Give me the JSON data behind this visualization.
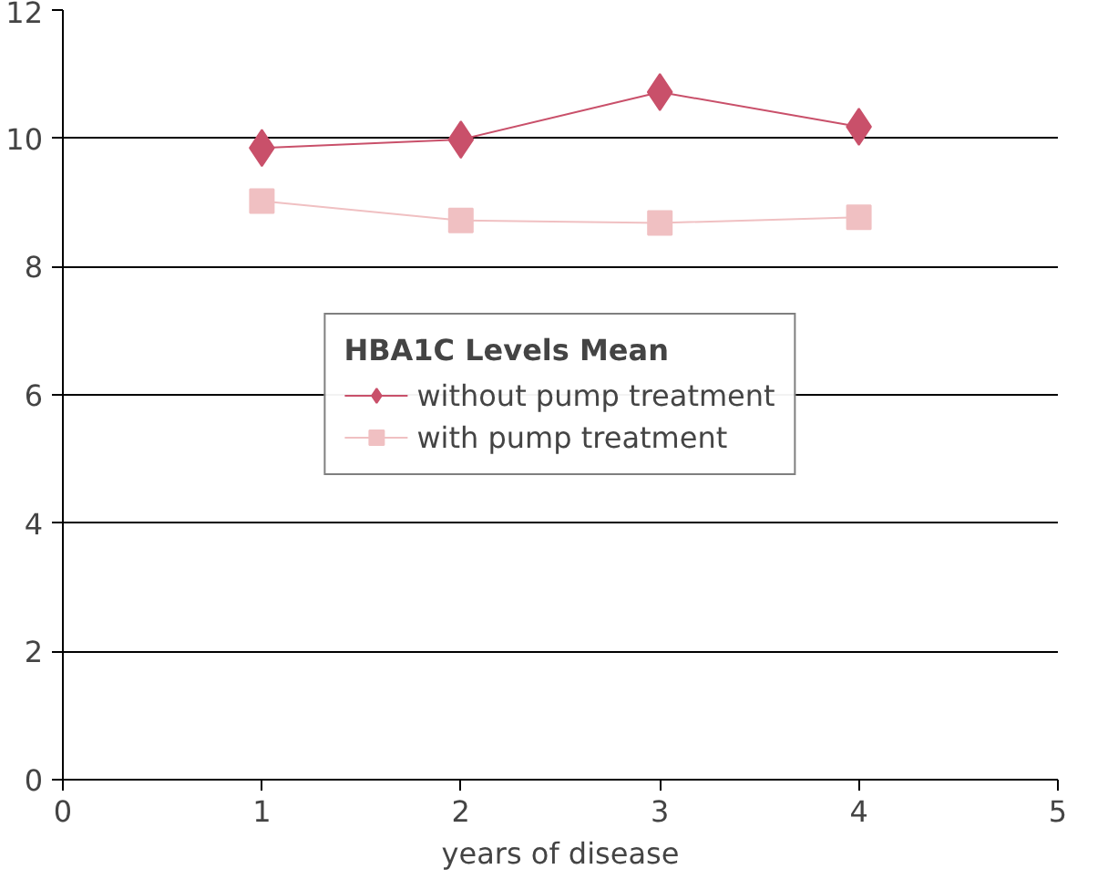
{
  "chart_data": {
    "type": "line",
    "xlabel": "years of disease",
    "legend_title": "HBA1C Levels Mean",
    "x": [
      1,
      2,
      3,
      4
    ],
    "series": [
      {
        "name": "without pump treatment",
        "color": "#c9506a",
        "values": [
          9.85,
          9.98,
          10.72,
          10.18
        ],
        "marker": "diamond"
      },
      {
        "name": "with pump treatment",
        "color": "#f0c0c2",
        "values": [
          9.02,
          8.72,
          8.68,
          8.77
        ],
        "marker": "square"
      }
    ],
    "xlim": [
      0,
      5
    ],
    "xticks": [
      0,
      1,
      2,
      3,
      4,
      5
    ],
    "ylim": [
      0,
      12
    ],
    "yticks": [
      0,
      2,
      4,
      6,
      8,
      10,
      12
    ],
    "grid": "y",
    "legend": "center",
    "line_style": "solid"
  }
}
